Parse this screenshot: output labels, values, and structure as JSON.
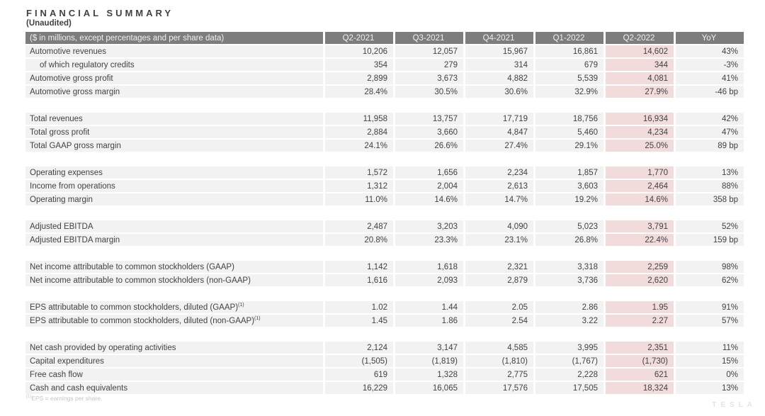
{
  "page": {
    "title": "FINANCIAL SUMMARY",
    "subtitle": "(Unaudited)"
  },
  "colors": {
    "header_bg": "#7d7d7d",
    "header_text": "#f2f0ee",
    "row_bg": "#f2f2f2",
    "highlight_bg": "#f2dcdb",
    "text": "#3f4245",
    "footnote": "#c4c4c4",
    "watermark": "#e4e4e4"
  },
  "table": {
    "columns": [
      "($ in millions, except percentages and per share data)",
      "Q2-2021",
      "Q3-2021",
      "Q4-2021",
      "Q1-2022",
      "Q2-2022",
      "YoY"
    ],
    "highlight_column": "Q2-2022",
    "highlight_value_index": 4,
    "rows": [
      {
        "type": "data",
        "label": "Automotive revenues",
        "indent": false,
        "values": [
          "10,206",
          "12,057",
          "15,967",
          "16,861",
          "14,602",
          "43%"
        ]
      },
      {
        "type": "data",
        "label": "of which regulatory credits",
        "indent": true,
        "values": [
          "354",
          "279",
          "314",
          "679",
          "344",
          "-3%"
        ]
      },
      {
        "type": "data",
        "label": "Automotive gross profit",
        "indent": false,
        "values": [
          "2,899",
          "3,673",
          "4,882",
          "5,539",
          "4,081",
          "41%"
        ]
      },
      {
        "type": "data",
        "label": "Automotive gross margin",
        "indent": false,
        "values": [
          "28.4%",
          "30.5%",
          "30.6%",
          "32.9%",
          "27.9%",
          "-46 bp"
        ]
      },
      {
        "type": "spacer"
      },
      {
        "type": "data",
        "label": "Total revenues",
        "indent": false,
        "values": [
          "11,958",
          "13,757",
          "17,719",
          "18,756",
          "16,934",
          "42%"
        ]
      },
      {
        "type": "data",
        "label": "Total gross profit",
        "indent": false,
        "values": [
          "2,884",
          "3,660",
          "4,847",
          "5,460",
          "4,234",
          "47%"
        ]
      },
      {
        "type": "data",
        "label": "Total GAAP gross margin",
        "indent": false,
        "values": [
          "24.1%",
          "26.6%",
          "27.4%",
          "29.1%",
          "25.0%",
          "89 bp"
        ]
      },
      {
        "type": "spacer"
      },
      {
        "type": "data",
        "label": "Operating expenses",
        "indent": false,
        "values": [
          "1,572",
          "1,656",
          "2,234",
          "1,857",
          "1,770",
          "13%"
        ]
      },
      {
        "type": "data",
        "label": "Income from operations",
        "indent": false,
        "values": [
          "1,312",
          "2,004",
          "2,613",
          "3,603",
          "2,464",
          "88%"
        ]
      },
      {
        "type": "data",
        "label": "Operating margin",
        "indent": false,
        "values": [
          "11.0%",
          "14.6%",
          "14.7%",
          "19.2%",
          "14.6%",
          "358 bp"
        ]
      },
      {
        "type": "spacer"
      },
      {
        "type": "data",
        "label": "Adjusted EBITDA",
        "indent": false,
        "values": [
          "2,487",
          "3,203",
          "4,090",
          "5,023",
          "3,791",
          "52%"
        ]
      },
      {
        "type": "data",
        "label": "Adjusted EBITDA margin",
        "indent": false,
        "values": [
          "20.8%",
          "23.3%",
          "23.1%",
          "26.8%",
          "22.4%",
          "159 bp"
        ]
      },
      {
        "type": "spacer"
      },
      {
        "type": "data",
        "label": "Net income attributable to common stockholders (GAAP)",
        "indent": false,
        "values": [
          "1,142",
          "1,618",
          "2,321",
          "3,318",
          "2,259",
          "98%"
        ]
      },
      {
        "type": "data",
        "label": "Net income attributable to common stockholders (non-GAAP)",
        "indent": false,
        "values": [
          "1,616",
          "2,093",
          "2,879",
          "3,736",
          "2,620",
          "62%"
        ]
      },
      {
        "type": "spacer"
      },
      {
        "type": "data",
        "label": "EPS attributable to common stockholders, diluted (GAAP)",
        "sup": "(1)",
        "indent": false,
        "values": [
          "1.02",
          "1.44",
          "2.05",
          "2.86",
          "1.95",
          "91%"
        ]
      },
      {
        "type": "data",
        "label": "EPS attributable to common stockholders, diluted (non-GAAP)",
        "sup": "(1)",
        "indent": false,
        "values": [
          "1.45",
          "1.86",
          "2.54",
          "3.22",
          "2.27",
          "57%"
        ]
      },
      {
        "type": "spacer"
      },
      {
        "type": "data",
        "label": "Net cash provided by operating activities",
        "indent": false,
        "values": [
          "2,124",
          "3,147",
          "4,585",
          "3,995",
          "2,351",
          "11%"
        ]
      },
      {
        "type": "data",
        "label": "Capital expenditures",
        "indent": false,
        "values": [
          "(1,505)",
          "(1,819)",
          "(1,810)",
          "(1,767)",
          "(1,730)",
          "15%"
        ]
      },
      {
        "type": "data",
        "label": "Free cash flow",
        "indent": false,
        "values": [
          "619",
          "1,328",
          "2,775",
          "2,228",
          "621",
          "0%"
        ]
      },
      {
        "type": "data",
        "label": "Cash and cash equivalents",
        "indent": false,
        "values": [
          "16,229",
          "16,065",
          "17,576",
          "17,505",
          "18,324",
          "13%"
        ]
      }
    ]
  },
  "footnote": {
    "sup": "(1)",
    "text": "EPS = earnings per share."
  },
  "watermark": "TESLA"
}
